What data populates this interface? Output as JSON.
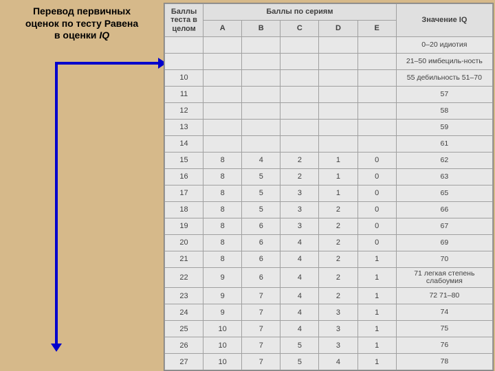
{
  "title_line1": "Перевод первичных",
  "title_line2": "оценок по тесту Равена",
  "title_line3": "в оценки ",
  "title_iq": "IQ",
  "headers": {
    "total": "Баллы теста в целом",
    "series_group": "Баллы по сериям",
    "series": [
      "A",
      "B",
      "C",
      "D",
      "E"
    ],
    "iq": "Значение IQ"
  },
  "rows": [
    {
      "total": "",
      "A": "",
      "B": "",
      "C": "",
      "D": "",
      "E": "",
      "iq": "0–20 идиотия"
    },
    {
      "total": "",
      "A": "",
      "B": "",
      "C": "",
      "D": "",
      "E": "",
      "iq": "21–50 имбециль-ность"
    },
    {
      "total": "10",
      "A": "",
      "B": "",
      "C": "",
      "D": "",
      "E": "",
      "iq": "55 дебильность 51–70"
    },
    {
      "total": "11",
      "A": "",
      "B": "",
      "C": "",
      "D": "",
      "E": "",
      "iq": "57"
    },
    {
      "total": "12",
      "A": "",
      "B": "",
      "C": "",
      "D": "",
      "E": "",
      "iq": "58"
    },
    {
      "total": "13",
      "A": "",
      "B": "",
      "C": "",
      "D": "",
      "E": "",
      "iq": "59"
    },
    {
      "total": "14",
      "A": "",
      "B": "",
      "C": "",
      "D": "",
      "E": "",
      "iq": "61"
    },
    {
      "total": "15",
      "A": "8",
      "B": "4",
      "C": "2",
      "D": "1",
      "E": "0",
      "iq": "62"
    },
    {
      "total": "16",
      "A": "8",
      "B": "5",
      "C": "2",
      "D": "1",
      "E": "0",
      "iq": "63"
    },
    {
      "total": "17",
      "A": "8",
      "B": "5",
      "C": "3",
      "D": "1",
      "E": "0",
      "iq": "65"
    },
    {
      "total": "18",
      "A": "8",
      "B": "5",
      "C": "3",
      "D": "2",
      "E": "0",
      "iq": "66"
    },
    {
      "total": "19",
      "A": "8",
      "B": "6",
      "C": "3",
      "D": "2",
      "E": "0",
      "iq": "67"
    },
    {
      "total": "20",
      "A": "8",
      "B": "6",
      "C": "4",
      "D": "2",
      "E": "0",
      "iq": "69"
    },
    {
      "total": "21",
      "A": "8",
      "B": "6",
      "C": "4",
      "D": "2",
      "E": "1",
      "iq": "70"
    },
    {
      "total": "22",
      "A": "9",
      "B": "6",
      "C": "4",
      "D": "2",
      "E": "1",
      "iq": "71 легкая степень слабоумия"
    },
    {
      "total": "23",
      "A": "9",
      "B": "7",
      "C": "4",
      "D": "2",
      "E": "1",
      "iq": "72 71–80"
    },
    {
      "total": "24",
      "A": "9",
      "B": "7",
      "C": "4",
      "D": "3",
      "E": "1",
      "iq": "74"
    },
    {
      "total": "25",
      "A": "10",
      "B": "7",
      "C": "4",
      "D": "3",
      "E": "1",
      "iq": "75"
    },
    {
      "total": "26",
      "A": "10",
      "B": "7",
      "C": "5",
      "D": "3",
      "E": "1",
      "iq": "76"
    },
    {
      "total": "27",
      "A": "10",
      "B": "7",
      "C": "5",
      "D": "4",
      "E": "1",
      "iq": "78"
    }
  ],
  "styling": {
    "page_background": "#d6b98a",
    "table_background": "#e8e8e8",
    "border_color": "#a0a0a0",
    "text_color": "#404040",
    "arrow_color": "#0000cc",
    "title_fontsize": 14,
    "cell_fontsize": 11,
    "col_widths": {
      "total": 50,
      "series": 50,
      "iq": 125
    }
  }
}
